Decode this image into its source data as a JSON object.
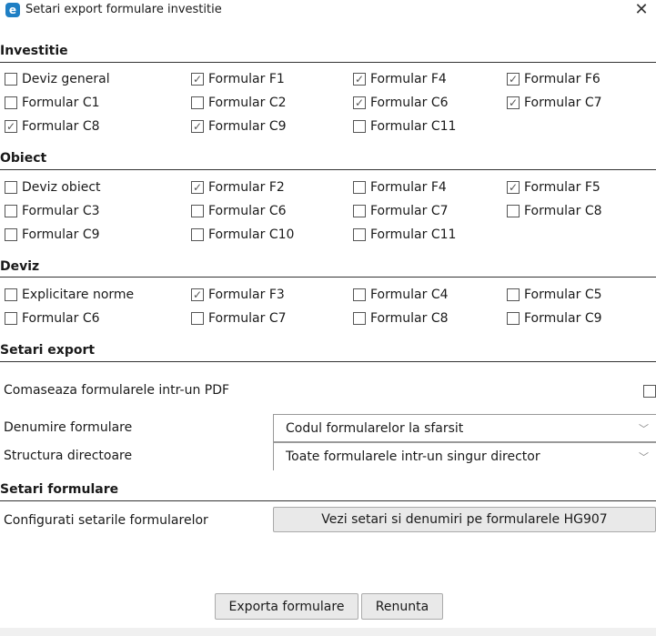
{
  "window": {
    "title": "Setari export formulare investitie",
    "close_icon": "close-icon",
    "app_icon": "app-logo-icon"
  },
  "sections": {
    "investitie": {
      "title": "Investitie",
      "items": [
        {
          "label": "Deviz general",
          "checked": false
        },
        {
          "label": "Formular F1",
          "checked": true
        },
        {
          "label": "Formular F4",
          "checked": true
        },
        {
          "label": "Formular F6",
          "checked": true
        },
        {
          "label": "Formular C1",
          "checked": false
        },
        {
          "label": "Formular C2",
          "checked": false
        },
        {
          "label": "Formular C6",
          "checked": true
        },
        {
          "label": "Formular C7",
          "checked": true
        },
        {
          "label": "Formular C8",
          "checked": true
        },
        {
          "label": "Formular C9",
          "checked": true
        },
        {
          "label": "Formular C11",
          "checked": false
        }
      ]
    },
    "obiect": {
      "title": "Obiect",
      "items": [
        {
          "label": "Deviz obiect",
          "checked": false
        },
        {
          "label": "Formular F2",
          "checked": true
        },
        {
          "label": "Formular F4",
          "checked": false
        },
        {
          "label": "Formular F5",
          "checked": true
        },
        {
          "label": "Formular C3",
          "checked": false
        },
        {
          "label": "Formular C6",
          "checked": false
        },
        {
          "label": "Formular C7",
          "checked": false
        },
        {
          "label": "Formular C8",
          "checked": false
        },
        {
          "label": "Formular C9",
          "checked": false
        },
        {
          "label": "Formular C10",
          "checked": false
        },
        {
          "label": "Formular C11",
          "checked": false
        }
      ]
    },
    "deviz": {
      "title": "Deviz",
      "items": [
        {
          "label": "Explicitare norme",
          "checked": false
        },
        {
          "label": "Formular F3",
          "checked": true
        },
        {
          "label": "Formular C4",
          "checked": false
        },
        {
          "label": "Formular C5",
          "checked": false
        },
        {
          "label": "Formular C6",
          "checked": false
        },
        {
          "label": "Formular C7",
          "checked": false
        },
        {
          "label": "Formular C8",
          "checked": false
        },
        {
          "label": "Formular C9",
          "checked": false
        }
      ]
    }
  },
  "export": {
    "title": "Setari export",
    "merge_label": "Comaseaza formularele intr-un PDF",
    "merge_checked": false,
    "naming_label": "Denumire formulare",
    "naming_value": "Codul formularelor la sfarsit",
    "structure_label": "Structura directoare",
    "structure_value": "Toate formularele intr-un singur director"
  },
  "formulare": {
    "title": "Setari formulare",
    "config_label": "Configurati setarile formularelor",
    "config_button": "Vezi setari si denumiri pe formularele HG907"
  },
  "buttons": {
    "export": "Exporta formulare",
    "cancel": "Renunta"
  }
}
